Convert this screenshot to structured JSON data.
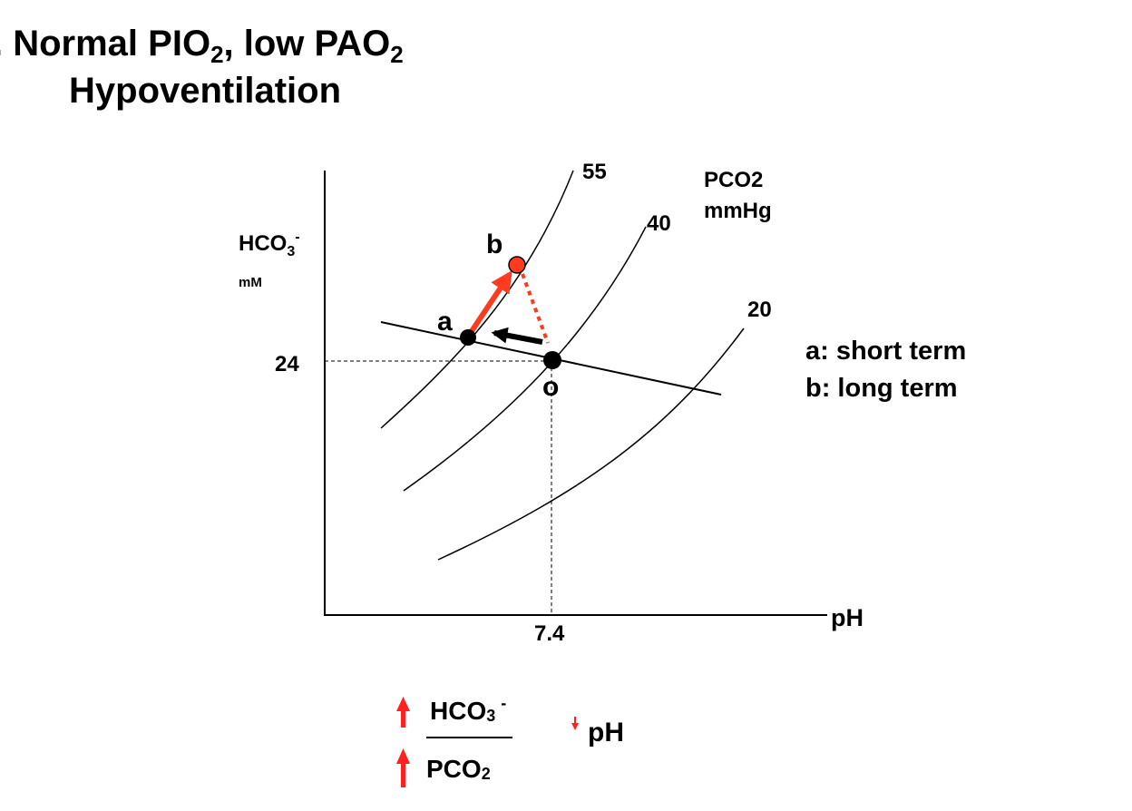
{
  "title": {
    "line1_main": ". Normal PIO",
    "line1_sub1": "2",
    "line1_mid": ", low PAO",
    "line1_sub2": "2",
    "line2": "Hypoventilation"
  },
  "axes": {
    "y_label": "HCO",
    "y_label_sub": "3",
    "y_label_sup": "-",
    "y_unit": "mM",
    "x_label": "pH",
    "y_tick": "24",
    "x_tick": "7.4"
  },
  "isobars": {
    "title_line1": "PCO2",
    "title_line2": "mmHg",
    "labels": [
      "55",
      "40",
      "20"
    ]
  },
  "points": {
    "a": "a",
    "b": "b",
    "o": "o"
  },
  "legend": {
    "a": "a: short term",
    "b": "b: long term"
  },
  "summary": {
    "numerator": "HCO",
    "numerator_sub": "3",
    "numerator_sup": "-",
    "denominator": "PCO",
    "denominator_sub": "2",
    "result": "pH"
  },
  "colors": {
    "red": "#ff3b1f",
    "arrow_red": "#ff2020",
    "black": "#000000"
  }
}
